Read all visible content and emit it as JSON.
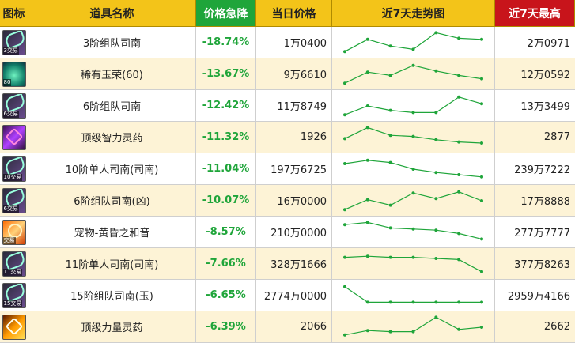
{
  "header": {
    "icon": "图标",
    "name": "道具名称",
    "drop": "价格急降",
    "price": "当日价格",
    "trend": "近7天走势图",
    "max": "近7天最高"
  },
  "colors": {
    "header_bg": "#f3c419",
    "drop_header": "#1fa53a",
    "max_header": "#c8141b",
    "trend_line": "#1fa53a"
  },
  "rows": [
    {
      "icon": "siege-doc-icon",
      "icon_tag": "3交易",
      "name": "3阶组队司南",
      "drop": "-18.74%",
      "price": "1万0400",
      "trend": [
        0.1,
        0.65,
        0.35,
        0.2,
        0.95,
        0.7,
        0.65
      ],
      "max": "2万0971"
    },
    {
      "icon": "jade-icon",
      "icon_tag": "80",
      "name": "稀有玉荣(60)",
      "drop": "-13.67%",
      "price": "9万6610",
      "trend": [
        0.1,
        0.6,
        0.45,
        0.9,
        0.65,
        0.45,
        0.3
      ],
      "max": "12万0592"
    },
    {
      "icon": "siege-doc-icon",
      "icon_tag": "6交易",
      "name": "6阶组队司南",
      "drop": "-12.42%",
      "price": "11万8749",
      "trend": [
        0.1,
        0.5,
        0.3,
        0.2,
        0.2,
        0.9,
        0.6
      ],
      "max": "13万3499"
    },
    {
      "icon": "potion-icon",
      "icon_tag": "",
      "name": "顶级智力灵药",
      "drop": "-11.32%",
      "price": "1926",
      "trend": [
        0.45,
        0.95,
        0.6,
        0.55,
        0.4,
        0.3,
        0.25
      ],
      "max": "2877"
    },
    {
      "icon": "siege-doc-icon",
      "icon_tag": "10交易",
      "name": "10阶单人司南(司南)",
      "drop": "-11.04%",
      "price": "197万6725",
      "trend": [
        0.75,
        0.9,
        0.8,
        0.5,
        0.35,
        0.25,
        0.15
      ],
      "max": "239万7222"
    },
    {
      "icon": "siege-doc-icon",
      "icon_tag": "6交易",
      "name": "6阶组队司南(凶)",
      "drop": "-10.07%",
      "price": "16万0000",
      "trend": [
        0.1,
        0.55,
        0.3,
        0.85,
        0.6,
        0.9,
        0.5
      ],
      "max": "17万8888"
    },
    {
      "icon": "pet-icon",
      "icon_tag": "交易",
      "name": "宠物-黄昏之和音",
      "drop": "-8.57%",
      "price": "210万0000",
      "trend": [
        0.85,
        0.95,
        0.7,
        0.65,
        0.6,
        0.45,
        0.2
      ],
      "max": "277万7777"
    },
    {
      "icon": "siege-doc-icon",
      "icon_tag": "11交易",
      "name": "11阶单人司南(司南)",
      "drop": "-7.66%",
      "price": "328万1666",
      "trend": [
        0.8,
        0.85,
        0.8,
        0.8,
        0.75,
        0.7,
        0.15
      ],
      "max": "377万8263"
    },
    {
      "icon": "siege-doc-icon",
      "icon_tag": "15交易",
      "name": "15阶组队司南(玉)",
      "drop": "-6.65%",
      "price": "2774万0000",
      "trend": [
        0.9,
        0.2,
        0.2,
        0.2,
        0.2,
        0.2,
        0.2
      ],
      "max": "2959万4166"
    },
    {
      "icon": "strength-potion-icon",
      "icon_tag": "",
      "name": "顶级力量灵药",
      "drop": "-6.39%",
      "price": "2066",
      "trend": [
        0.15,
        0.35,
        0.3,
        0.3,
        0.95,
        0.4,
        0.5
      ],
      "max": "2662"
    }
  ]
}
